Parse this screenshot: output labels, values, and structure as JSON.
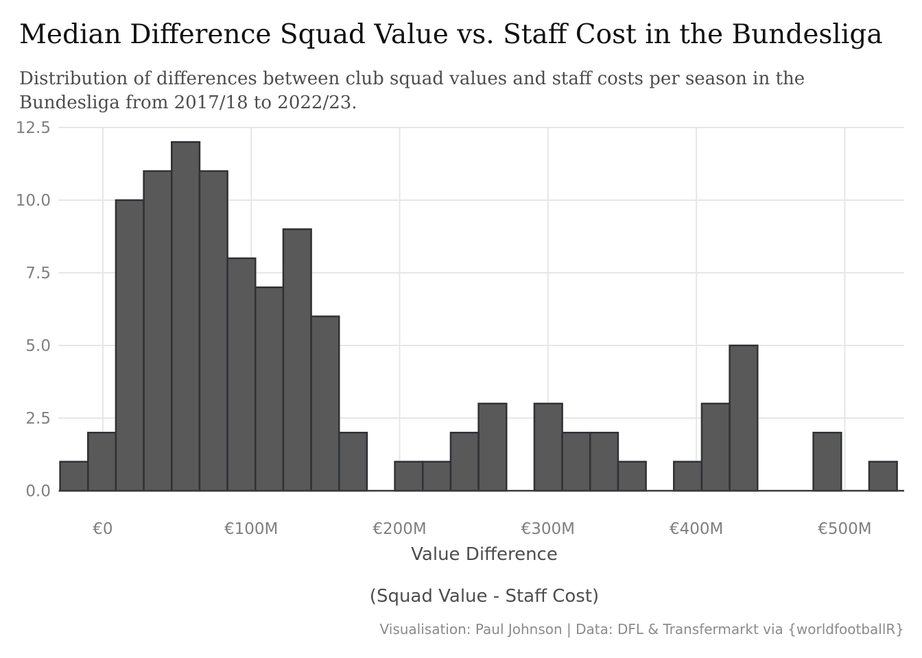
{
  "title": "Median Difference Squad Value vs. Staff Cost in the Bundesliga",
  "subtitle": "Distribution of differences between club squad values and staff costs per season in the Bundesliga from 2017/18 to 2022/23.",
  "caption": "Visualisation: Paul Johnson | Data: DFL & Transfermarkt via {worldfootballR}",
  "colors": {
    "bar_fill": "#595959",
    "bar_stroke": "#2f3136",
    "grid": "#e6e6e6",
    "baseline": "#3a3a3a"
  },
  "chart_data": {
    "type": "bar",
    "subtype": "histogram",
    "xlabel_lines": [
      "Value Difference",
      "(Squad Value - Staff Cost)"
    ],
    "ylabel": "",
    "xlim": [
      -30,
      540
    ],
    "ylim": [
      0,
      12.5
    ],
    "bin_width": 18.8,
    "bin_start": -28.8,
    "counts": [
      1,
      2,
      10,
      11,
      12,
      11,
      8,
      7,
      9,
      6,
      2,
      0,
      1,
      1,
      2,
      3,
      0,
      3,
      2,
      2,
      1,
      0,
      1,
      3,
      5,
      0,
      0,
      2,
      0,
      1
    ],
    "x_ticks": [
      0,
      100,
      200,
      300,
      400,
      500
    ],
    "x_tick_labels": [
      "€0",
      "€100M",
      "€200M",
      "€300M",
      "€400M",
      "€500M"
    ],
    "y_ticks": [
      0,
      2.5,
      5,
      7.5,
      10,
      12.5
    ],
    "y_tick_labels": [
      "0.0",
      "2.5",
      "5.0",
      "7.5",
      "10.0",
      "12.5"
    ],
    "grid": true,
    "legend": "none"
  }
}
